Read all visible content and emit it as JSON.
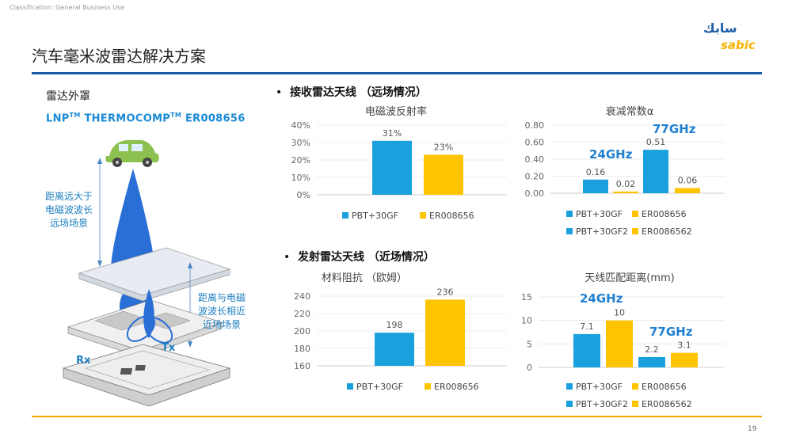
{
  "classification": "Classification: General Business Use",
  "slide_title": "汽车毫米波雷达解决方案",
  "page_number": "19",
  "logo": {
    "arabic_text": "سابك",
    "latin_text": "sabic",
    "primary_color": "#1f5fa8",
    "accent_color": "#f5b400"
  },
  "left_panel": {
    "heading": "雷达外罩",
    "product_prefix": "LNP",
    "product_tm": "TM",
    "product_name": " THERMOCOMP",
    "product_tm2": "TM",
    "product_code": " ER008656",
    "annotation_far": [
      "距离远大于",
      "电磁波波长",
      "远场场景"
    ],
    "annotation_near": [
      "距离与电磁",
      "波波长相近",
      "近场场景"
    ],
    "rx_label": "Rx",
    "tx_label": "Tx"
  },
  "sections": [
    {
      "bullet": "•",
      "label": "接收雷达天线 （远场情况）"
    },
    {
      "bullet": "•",
      "label": "发射雷达天线 （近场情况）"
    }
  ],
  "colors": {
    "blue": "#1aa0dd",
    "yellow": "#ffc400",
    "freq_text": "#1f7fd1",
    "title_rule": "#1b5aa6",
    "footer_rule": "#f5a800"
  },
  "chart_data": [
    {
      "type": "bar",
      "title": "电磁波反射率",
      "categories": [
        "PBT+30GF",
        "ER008656"
      ],
      "values": [
        31,
        23
      ],
      "value_labels": [
        "31%",
        "23%"
      ],
      "ylim": [
        0,
        40
      ],
      "yticks": [
        "0%",
        "10%",
        "20%",
        "30%",
        "40%"
      ],
      "colors": [
        "#1aa0dd",
        "#ffc400"
      ],
      "legend": [
        "PBT+30GF",
        "ER008656"
      ],
      "grid": true
    },
    {
      "type": "bar",
      "title": "衰减常数α",
      "groups": [
        "24GHz",
        "77GHz"
      ],
      "categories": [
        "PBT+30GF",
        "ER008656",
        "PBT+30GF2",
        "ER0086562"
      ],
      "values": [
        0.16,
        0.02,
        0.51,
        0.06
      ],
      "value_labels": [
        "0.16",
        "0.02",
        "0.51",
        "0.06"
      ],
      "ylim": [
        0,
        0.8
      ],
      "yticks": [
        "0.00",
        "0.20",
        "0.40",
        "0.60",
        "0.80"
      ],
      "colors": [
        "#1aa0dd",
        "#ffc400",
        "#1aa0dd",
        "#ffc400"
      ],
      "legend": [
        "PBT+30GF",
        "ER008656",
        "PBT+30GF2",
        "ER0086562"
      ],
      "grid": true
    },
    {
      "type": "bar",
      "title": "材料阻抗 （欧姆）",
      "categories": [
        "PBT+30GF",
        "ER008656"
      ],
      "values": [
        198,
        236
      ],
      "value_labels": [
        "198",
        "236"
      ],
      "ylim": [
        160,
        240
      ],
      "yticks": [
        "160",
        "180",
        "200",
        "220",
        "240"
      ],
      "colors": [
        "#1aa0dd",
        "#ffc400"
      ],
      "legend": [
        "PBT+30GF",
        "ER008656"
      ],
      "grid": true
    },
    {
      "type": "bar",
      "title": "天线匹配距离(mm)",
      "groups": [
        "24GHz",
        "77GHz"
      ],
      "categories": [
        "PBT+30GF",
        "ER008656",
        "PBT+30GF2",
        "ER0086562"
      ],
      "values": [
        7.1,
        10,
        2.2,
        3.1
      ],
      "value_labels": [
        "7.1",
        "10",
        "2.2",
        "3.1"
      ],
      "ylim": [
        0,
        15
      ],
      "yticks": [
        "0",
        "5",
        "10",
        "15"
      ],
      "colors": [
        "#1aa0dd",
        "#ffc400",
        "#1aa0dd",
        "#ffc400"
      ],
      "legend": [
        "PBT+30GF",
        "ER008656",
        "PBT+30GF2",
        "ER0086562"
      ],
      "grid": true
    }
  ]
}
